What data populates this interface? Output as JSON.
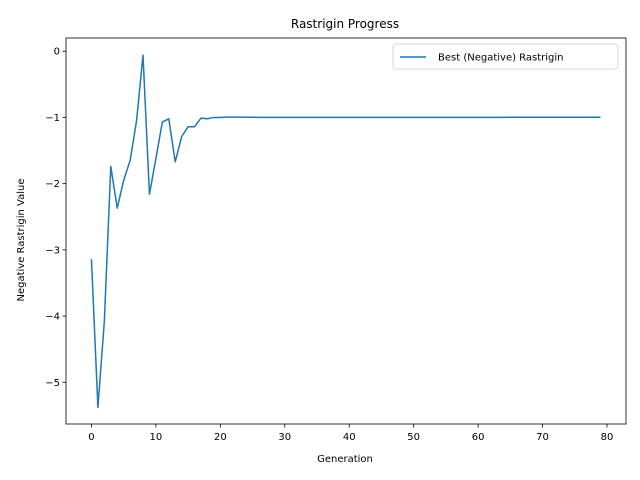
{
  "chart_data": {
    "type": "line",
    "title": "Rastrigin Progress",
    "xlabel": "Generation",
    "ylabel": "Negative Rastrigin Value",
    "xlim": [
      -3.95,
      82.95
    ],
    "ylim": [
      -5.63,
      0.2
    ],
    "xticks": [
      0,
      10,
      20,
      30,
      40,
      50,
      60,
      70,
      80
    ],
    "yticks": [
      0,
      -1,
      -2,
      -3,
      -4,
      -5
    ],
    "ytick_labels": [
      "0",
      "−1",
      "−2",
      "−3",
      "−4",
      "−5"
    ],
    "grid": false,
    "legend_position": "top-right",
    "series": [
      {
        "name": "Best (Negative) Rastrigin",
        "color": "#1f77b4",
        "x": [
          0,
          1,
          2,
          3,
          4,
          5,
          6,
          7,
          8,
          9,
          10,
          11,
          12,
          13,
          14,
          15,
          16,
          17,
          18,
          19,
          20,
          21,
          22,
          23,
          24,
          25,
          26,
          27,
          28,
          29,
          30,
          31,
          32,
          33,
          34,
          35,
          36,
          37,
          38,
          39,
          40,
          41,
          42,
          43,
          44,
          45,
          46,
          47,
          48,
          49,
          50,
          51,
          52,
          53,
          54,
          55,
          56,
          57,
          58,
          59,
          60,
          61,
          62,
          63,
          64,
          65,
          66,
          67,
          68,
          69,
          70,
          71,
          72,
          73,
          74,
          75,
          76,
          77,
          78,
          79
        ],
        "y": [
          -3.14,
          -5.38,
          -4.08,
          -1.74,
          -2.37,
          -1.95,
          -1.65,
          -1.05,
          -0.06,
          -2.16,
          -1.62,
          -1.07,
          -1.02,
          -1.67,
          -1.29,
          -1.14,
          -1.14,
          -1.01,
          -1.02,
          -1.0,
          -1.0,
          -0.995,
          -0.995,
          -0.995,
          -0.996,
          -0.997,
          -0.998,
          -0.998,
          -0.999,
          -0.999,
          -0.999,
          -0.999,
          -0.999,
          -0.999,
          -0.999,
          -0.999,
          -0.999,
          -0.999,
          -0.999,
          -0.999,
          -0.999,
          -0.999,
          -0.999,
          -0.998,
          -0.998,
          -0.998,
          -0.998,
          -0.998,
          -0.998,
          -0.998,
          -0.998,
          -0.998,
          -0.998,
          -0.998,
          -0.998,
          -0.998,
          -0.998,
          -0.998,
          -0.998,
          -0.998,
          -0.998,
          -0.998,
          -0.998,
          -0.998,
          -0.998,
          -0.997,
          -0.997,
          -0.997,
          -0.997,
          -0.996,
          -0.996,
          -0.996,
          -0.996,
          -0.996,
          -0.996,
          -0.996,
          -0.996,
          -0.996,
          -0.996,
          -0.996
        ]
      }
    ]
  }
}
